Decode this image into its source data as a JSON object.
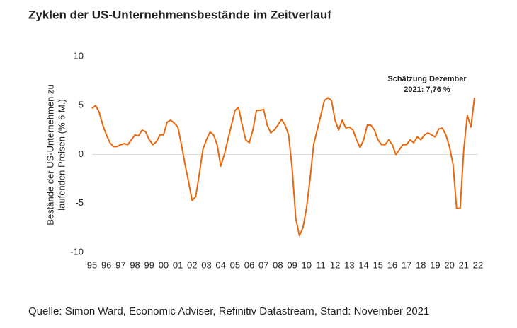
{
  "chart_data": {
    "type": "line",
    "title": "Zyklen der US-Unternehmensbestände im Zeitverlauf",
    "y_label": [
      "Bestände der US-Unternehmen zu",
      "laufenden Preisen (% 6 M.)"
    ],
    "annotation": [
      "Schätzung Dezember",
      "2021: 7,76 %"
    ],
    "source": "Quelle: Simon Ward, Economic Adviser, Refinitiv Datastream, Stand: November 2021",
    "x": [
      1995,
      1995.25,
      1995.5,
      1995.75,
      1996,
      1996.25,
      1996.5,
      1996.75,
      1997,
      1997.25,
      1997.5,
      1997.75,
      1998,
      1998.25,
      1998.5,
      1998.75,
      1999,
      1999.25,
      1999.5,
      1999.75,
      2000,
      2000.25,
      2000.5,
      2000.75,
      2001,
      2001.25,
      2001.5,
      2001.75,
      2002,
      2002.25,
      2002.5,
      2002.75,
      2003,
      2003.25,
      2003.5,
      2003.75,
      2004,
      2004.25,
      2004.5,
      2004.75,
      2005,
      2005.25,
      2005.5,
      2005.75,
      2006,
      2006.25,
      2006.5,
      2006.75,
      2007,
      2007.25,
      2007.5,
      2007.75,
      2008,
      2008.25,
      2008.5,
      2008.75,
      2009,
      2009.25,
      2009.5,
      2009.75,
      2010,
      2010.25,
      2010.5,
      2010.75,
      2011,
      2011.25,
      2011.5,
      2011.75,
      2012,
      2012.25,
      2012.5,
      2012.75,
      2013,
      2013.25,
      2013.5,
      2013.75,
      2014,
      2014.25,
      2014.5,
      2014.75,
      2015,
      2015.25,
      2015.5,
      2015.75,
      2016,
      2016.25,
      2016.5,
      2016.75,
      2017,
      2017.25,
      2017.5,
      2017.75,
      2018,
      2018.25,
      2018.5,
      2018.75,
      2019,
      2019.25,
      2019.5,
      2019.75,
      2020,
      2020.25,
      2020.5,
      2020.75,
      2021,
      2021.25,
      2021.5,
      2021.75
    ],
    "series": [
      {
        "name": "Bestände",
        "color": "#e8680f",
        "values": [
          4.7,
          5.0,
          4.3,
          3.0,
          2.0,
          1.2,
          0.8,
          0.8,
          1.0,
          1.1,
          1.0,
          1.5,
          2.0,
          1.9,
          2.5,
          2.3,
          1.5,
          1.0,
          1.3,
          2.0,
          2.0,
          3.3,
          3.5,
          3.2,
          2.8,
          1.0,
          -1.0,
          -2.8,
          -4.7,
          -4.3,
          -2.0,
          0.5,
          1.5,
          2.3,
          2.0,
          1.0,
          -1.2,
          0.0,
          1.5,
          3.0,
          4.5,
          4.8,
          3.0,
          1.5,
          1.2,
          2.5,
          4.5,
          4.5,
          4.6,
          3.0,
          2.2,
          2.5,
          3.0,
          3.6,
          3.0,
          2.0,
          -1.5,
          -6.5,
          -8.3,
          -7.5,
          -5.5,
          -2.5,
          1.0,
          2.5,
          4.0,
          5.5,
          5.8,
          5.5,
          3.5,
          2.5,
          3.5,
          2.7,
          2.8,
          2.5,
          1.5,
          0.7,
          1.5,
          3.0,
          3.0,
          2.5,
          1.5,
          1.0,
          1.0,
          1.5,
          1.0,
          0.0,
          0.5,
          1.0,
          1.0,
          1.5,
          1.2,
          1.8,
          1.5,
          2.0,
          2.2,
          2.0,
          1.8,
          2.6,
          2.7,
          2.0,
          0.8,
          -1.0,
          -5.5,
          -5.5,
          0.5,
          4.0,
          2.8,
          5.8
        ]
      }
    ],
    "xlim": [
      1995,
      2022
    ],
    "xticks": [
      {
        "value": 1995,
        "label": "95"
      },
      {
        "value": 1996,
        "label": "96"
      },
      {
        "value": 1997,
        "label": "97"
      },
      {
        "value": 1998,
        "label": "98"
      },
      {
        "value": 1999,
        "label": "99"
      },
      {
        "value": 2000,
        "label": "00"
      },
      {
        "value": 2001,
        "label": "01"
      },
      {
        "value": 2002,
        "label": "02"
      },
      {
        "value": 2003,
        "label": "03"
      },
      {
        "value": 2004,
        "label": "04"
      },
      {
        "value": 2005,
        "label": "05"
      },
      {
        "value": 2006,
        "label": "06"
      },
      {
        "value": 2007,
        "label": "07"
      },
      {
        "value": 2008,
        "label": "08"
      },
      {
        "value": 2009,
        "label": "09"
      },
      {
        "value": 2010,
        "label": "10"
      },
      {
        "value": 2011,
        "label": "11"
      },
      {
        "value": 2012,
        "label": "12"
      },
      {
        "value": 2013,
        "label": "13"
      },
      {
        "value": 2014,
        "label": "14"
      },
      {
        "value": 2015,
        "label": "15"
      },
      {
        "value": 2016,
        "label": "16"
      },
      {
        "value": 2017,
        "label": "17"
      },
      {
        "value": 2018,
        "label": "18"
      },
      {
        "value": 2019,
        "label": "19"
      },
      {
        "value": 2020,
        "label": "20"
      },
      {
        "value": 2021,
        "label": "21"
      },
      {
        "value": 2022,
        "label": "22"
      }
    ],
    "ylim": [
      -10,
      10
    ],
    "yticks": [
      -10,
      -5,
      0,
      5,
      10
    ],
    "zero_line": true
  }
}
